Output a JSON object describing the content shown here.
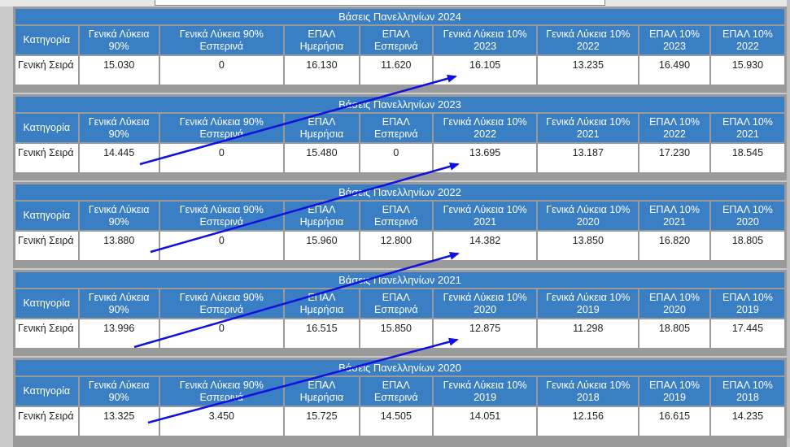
{
  "headers_template": {
    "category": "Κατηγορία",
    "gl90": "Γενικά Λύκεια 90%",
    "gl90e": "Γενικά Λύκεια 90% Εσπερινά",
    "epal_h": "ΕΠΑΛ Ημερήσια",
    "epal_e": "ΕΠΑΛ Εσπερινά"
  },
  "row_label": "Γενική Σειρά",
  "tables": [
    {
      "caption": "Βάσεις Πανελληνίων 2024",
      "h6": "Γενικά Λύκεια 10% 2023",
      "h7": "Γενικά Λύκεια 10% 2022",
      "h8": "ΕΠΑΛ 10% 2023",
      "h9": "ΕΠΑΛ 10% 2022",
      "values": [
        "15.030",
        "0",
        "16.130",
        "11.620",
        "16.105",
        "13.235",
        "16.490",
        "15.930"
      ]
    },
    {
      "caption": "Βάσεις Πανελληνίων 2023",
      "h6": "Γενικά Λύκεια 10% 2022",
      "h7": "Γενικά Λύκεια 10% 2021",
      "h8": "ΕΠΑΛ 10% 2022",
      "h9": "ΕΠΑΛ 10% 2021",
      "values": [
        "14.445",
        "0",
        "15.480",
        "0",
        "13.695",
        "13.187",
        "17.230",
        "18.545"
      ]
    },
    {
      "caption": "Βάσεις Πανελληνίων 2022",
      "h6": "Γενικά Λύκεια 10% 2021",
      "h7": "Γενικά Λύκεια 10% 2020",
      "h8": "ΕΠΑΛ 10% 2021",
      "h9": "ΕΠΑΛ 10% 2020",
      "values": [
        "13.880",
        "0",
        "15.960",
        "12.800",
        "14.382",
        "13.850",
        "16.820",
        "18.805"
      ]
    },
    {
      "caption": "Βάσεις Πανελληνίων 2021",
      "h6": "Γενικά Λύκεια 10% 2020",
      "h7": "Γενικά Λύκεια 10% 2019",
      "h8": "ΕΠΑΛ 10% 2020",
      "h9": "ΕΠΑΛ 10% 2019",
      "values": [
        "13.996",
        "0",
        "16.515",
        "15.850",
        "12.875",
        "11.298",
        "18.805",
        "17.445"
      ]
    },
    {
      "caption": "Βάσεις Πανελληνίων 2020",
      "h6": "Γενικά Λύκεια 10% 2019",
      "h7": "Γενικά Λύκεια 10% 2018",
      "h8": "ΕΠΑΛ 10% 2019",
      "h9": "ΕΠΑΛ 10% 2018",
      "values": [
        "13.325",
        "3.450",
        "15.725",
        "14.505",
        "14.051",
        "12.156",
        "16.615",
        "14.235"
      ]
    }
  ],
  "colors": {
    "header_bg": "#3a7fc3",
    "arrow": "#1010e0"
  }
}
